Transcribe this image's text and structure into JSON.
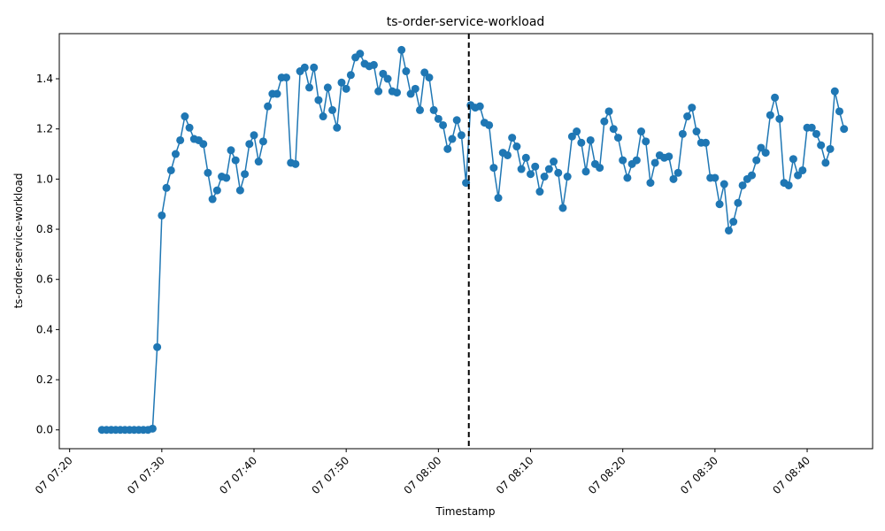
{
  "chart_data": {
    "type": "line",
    "title": "ts-order-service-workload",
    "xlabel": "Timestamp",
    "ylabel": "ts-order-service-workload",
    "x_unit": "minutes after 07:20 on day 07",
    "x_start": "07 07:23:30",
    "x_step_seconds": 30,
    "xlim": [
      -1.12,
      87.1
    ],
    "ylim": [
      -0.075,
      1.58
    ],
    "xticks": [
      {
        "t": 0,
        "label": "07 07:20"
      },
      {
        "t": 10,
        "label": "07 07:30"
      },
      {
        "t": 20,
        "label": "07 07:40"
      },
      {
        "t": 30,
        "label": "07 07:50"
      },
      {
        "t": 40,
        "label": "07 08:00"
      },
      {
        "t": 50,
        "label": "07 08:10"
      },
      {
        "t": 60,
        "label": "07 08:20"
      },
      {
        "t": 70,
        "label": "07 08:30"
      },
      {
        "t": 80,
        "label": "07 08:40"
      }
    ],
    "yticks": [
      {
        "v": 0.0,
        "label": "0.0"
      },
      {
        "v": 0.2,
        "label": "0.2"
      },
      {
        "v": 0.4,
        "label": "0.4"
      },
      {
        "v": 0.6,
        "label": "0.6"
      },
      {
        "v": 0.8,
        "label": "0.8"
      },
      {
        "v": 1.0,
        "label": "1.0"
      },
      {
        "v": 1.2,
        "label": "1.2"
      },
      {
        "v": 1.4,
        "label": "1.4"
      }
    ],
    "vline": {
      "t": 43.3,
      "style": "dashed",
      "color": "#000000"
    },
    "series": [
      {
        "color": "#1f77b4",
        "marker": "circle",
        "values": [
          0,
          0,
          0,
          0,
          0,
          0,
          0,
          0,
          0,
          0,
          0,
          0.005,
          0.33,
          0.855,
          0.965,
          1.035,
          1.1,
          1.155,
          1.25,
          1.205,
          1.16,
          1.155,
          1.14,
          1.025,
          0.92,
          0.955,
          1.01,
          1.005,
          1.115,
          1.075,
          0.955,
          1.02,
          1.14,
          1.175,
          1.07,
          1.15,
          1.29,
          1.34,
          1.34,
          1.405,
          1.405,
          1.065,
          1.06,
          1.43,
          1.445,
          1.365,
          1.445,
          1.315,
          1.25,
          1.365,
          1.275,
          1.205,
          1.385,
          1.36,
          1.415,
          1.485,
          1.5,
          1.46,
          1.45,
          1.455,
          1.35,
          1.42,
          1.4,
          1.35,
          1.345,
          1.515,
          1.43,
          1.34,
          1.36,
          1.275,
          1.425,
          1.405,
          1.275,
          1.24,
          1.215,
          1.12,
          1.16,
          1.235,
          1.175,
          0.985,
          1.295,
          1.285,
          1.29,
          1.225,
          1.215,
          1.045,
          0.925,
          1.105,
          1.095,
          1.165,
          1.13,
          1.04,
          1.085,
          1.02,
          1.05,
          0.95,
          1.01,
          1.04,
          1.07,
          1.025,
          0.885,
          1.01,
          1.17,
          1.19,
          1.145,
          1.03,
          1.155,
          1.06,
          1.045,
          1.23,
          1.27,
          1.2,
          1.165,
          1.075,
          1.005,
          1.06,
          1.075,
          1.19,
          1.15,
          0.985,
          1.065,
          1.095,
          1.085,
          1.09,
          1.0,
          1.025,
          1.18,
          1.25,
          1.285,
          1.19,
          1.145,
          1.145,
          1.005,
          1.005,
          0.9,
          0.98,
          0.795,
          0.83,
          0.905,
          0.975,
          1.0,
          1.015,
          1.075,
          1.125,
          1.105,
          1.255,
          1.325,
          1.24,
          0.985,
          0.975,
          1.08,
          1.015,
          1.035,
          1.205,
          1.205,
          1.18,
          1.135,
          1.065,
          1.12,
          1.35,
          1.27,
          1.2
        ]
      }
    ]
  }
}
